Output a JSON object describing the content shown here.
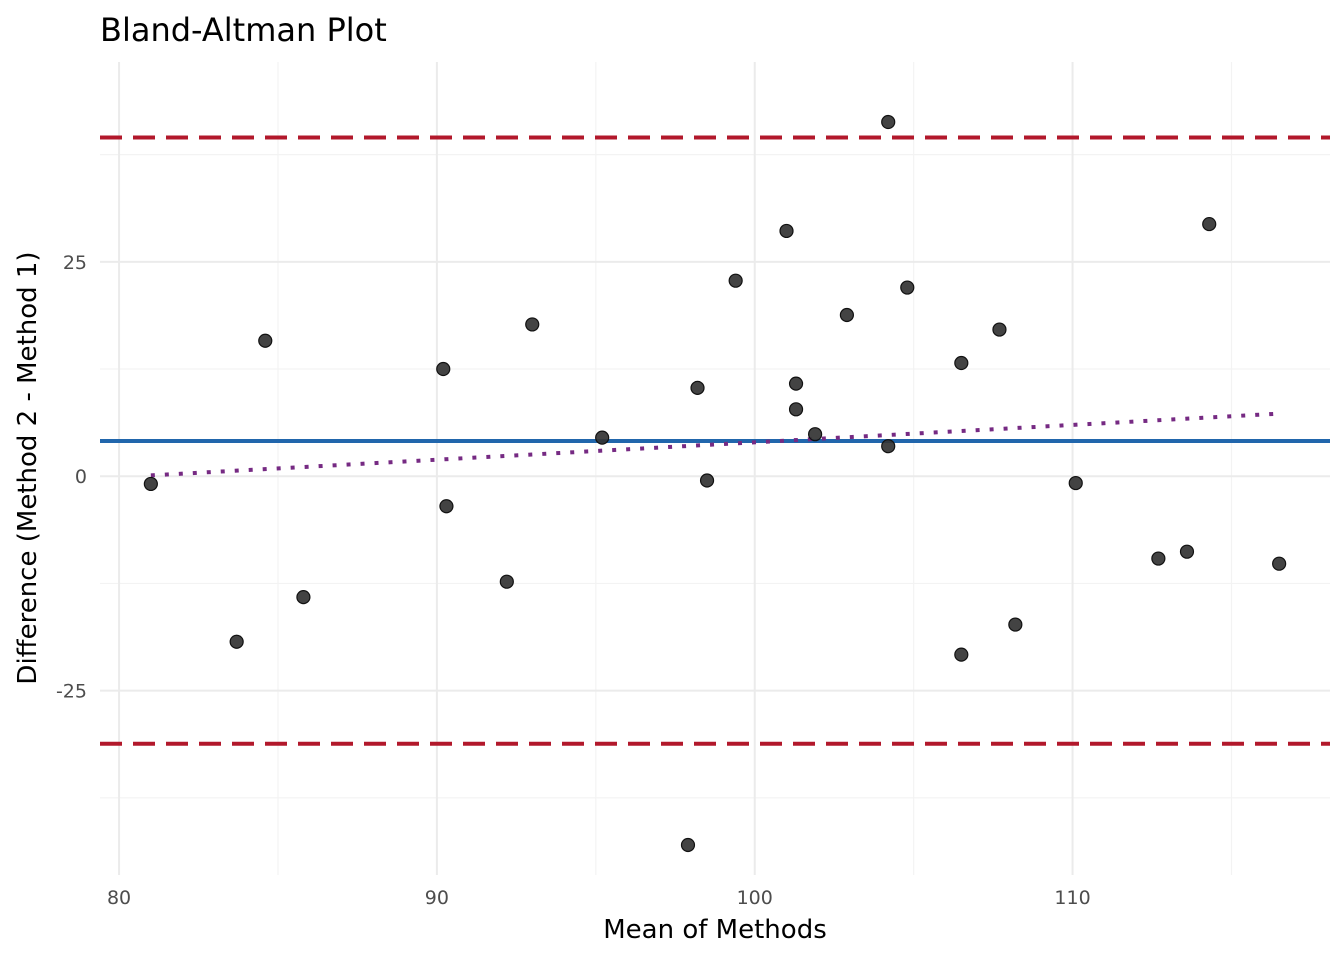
{
  "chart_data": {
    "type": "scatter",
    "title": "Bland-Altman Plot",
    "xlabel": "Mean of Methods",
    "ylabel": "Difference (Method 2 - Method 1)",
    "xlim": [
      79.4,
      118.1
    ],
    "ylim": [
      -46.5,
      48.3
    ],
    "x_ticks": [
      80,
      90,
      100,
      110
    ],
    "y_ticks": [
      -25,
      0,
      25
    ],
    "x_minor_ticks": [
      85,
      95,
      105,
      115
    ],
    "y_minor_ticks": [
      -37.5,
      -12.5,
      12.5,
      37.5
    ],
    "grid": true,
    "points": [
      {
        "x": 81.0,
        "y": -0.9
      },
      {
        "x": 83.7,
        "y": -19.3
      },
      {
        "x": 84.6,
        "y": 15.8
      },
      {
        "x": 85.8,
        "y": -14.1
      },
      {
        "x": 90.2,
        "y": 12.5
      },
      {
        "x": 90.3,
        "y": -3.5
      },
      {
        "x": 92.2,
        "y": -12.3
      },
      {
        "x": 93.0,
        "y": 17.7
      },
      {
        "x": 95.2,
        "y": 4.5
      },
      {
        "x": 97.9,
        "y": -43.0
      },
      {
        "x": 98.2,
        "y": 10.3
      },
      {
        "x": 98.5,
        "y": -0.5
      },
      {
        "x": 99.4,
        "y": 22.8
      },
      {
        "x": 101.0,
        "y": 28.6
      },
      {
        "x": 101.3,
        "y": 10.8
      },
      {
        "x": 101.3,
        "y": 7.8
      },
      {
        "x": 101.9,
        "y": 4.9
      },
      {
        "x": 102.9,
        "y": 18.8
      },
      {
        "x": 104.2,
        "y": 41.3
      },
      {
        "x": 104.2,
        "y": 3.5
      },
      {
        "x": 104.8,
        "y": 22.0
      },
      {
        "x": 106.5,
        "y": 13.2
      },
      {
        "x": 106.5,
        "y": -20.8
      },
      {
        "x": 107.7,
        "y": 17.1
      },
      {
        "x": 108.2,
        "y": -17.3
      },
      {
        "x": 110.1,
        "y": -0.8
      },
      {
        "x": 112.7,
        "y": -9.6
      },
      {
        "x": 113.6,
        "y": -8.8
      },
      {
        "x": 114.3,
        "y": 29.4
      },
      {
        "x": 116.5,
        "y": -10.2
      }
    ],
    "mean_difference": 4.1,
    "upper_limit": 39.5,
    "lower_limit": -31.2,
    "trend_line": {
      "x": [
        81.0,
        116.5
      ],
      "y": [
        0.1,
        7.3
      ]
    },
    "colors": {
      "points": "#333333",
      "mean_line": "#2166ac",
      "limit_lines": "#b2182b",
      "trend_line": "#762a83"
    }
  }
}
